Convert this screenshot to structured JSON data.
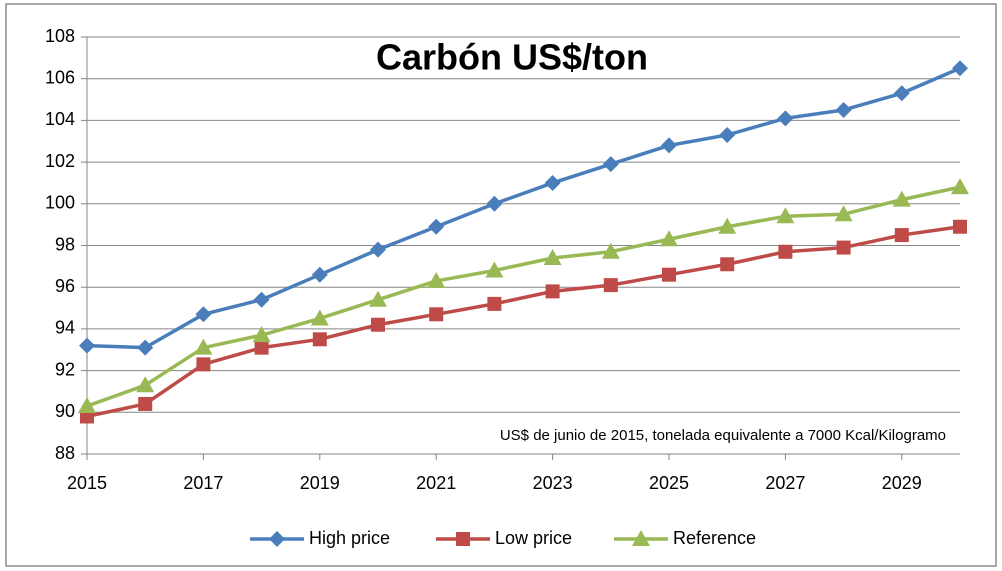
{
  "chart_data": {
    "type": "line",
    "title": "Carbón US$/ton",
    "annotation": "US$ de junio de 2015, tonelada equivalente a 7000 Kcal/Kilogramo",
    "x": [
      2015,
      2016,
      2017,
      2018,
      2019,
      2020,
      2021,
      2022,
      2023,
      2024,
      2025,
      2026,
      2027,
      2028,
      2029,
      2030
    ],
    "series": [
      {
        "name": "High price",
        "color": "#4a7ebb",
        "marker": "diamond",
        "values": [
          93.2,
          93.1,
          94.7,
          95.4,
          96.6,
          97.8,
          98.9,
          100.0,
          101.0,
          101.9,
          102.8,
          103.3,
          104.1,
          104.5,
          105.3,
          106.5
        ]
      },
      {
        "name": "Low price",
        "color": "#be4b48",
        "marker": "square",
        "values": [
          89.8,
          90.4,
          92.3,
          93.1,
          93.5,
          94.2,
          94.7,
          95.2,
          95.8,
          96.1,
          96.6,
          97.1,
          97.7,
          97.9,
          98.5,
          98.9
        ]
      },
      {
        "name": "Reference",
        "color": "#98b954",
        "marker": "triangle",
        "values": [
          90.3,
          91.3,
          93.1,
          93.7,
          94.5,
          95.4,
          96.3,
          96.8,
          97.4,
          97.7,
          98.3,
          98.9,
          99.4,
          99.5,
          100.2,
          100.8
        ]
      }
    ],
    "xlim": [
      2015,
      2030
    ],
    "xticks": [
      2015,
      2017,
      2019,
      2021,
      2023,
      2025,
      2027,
      2029
    ],
    "ylim": [
      88,
      108
    ],
    "yticks": [
      88,
      90,
      92,
      94,
      96,
      98,
      100,
      102,
      104,
      106,
      108
    ],
    "grid": true,
    "legend": "bottom"
  }
}
